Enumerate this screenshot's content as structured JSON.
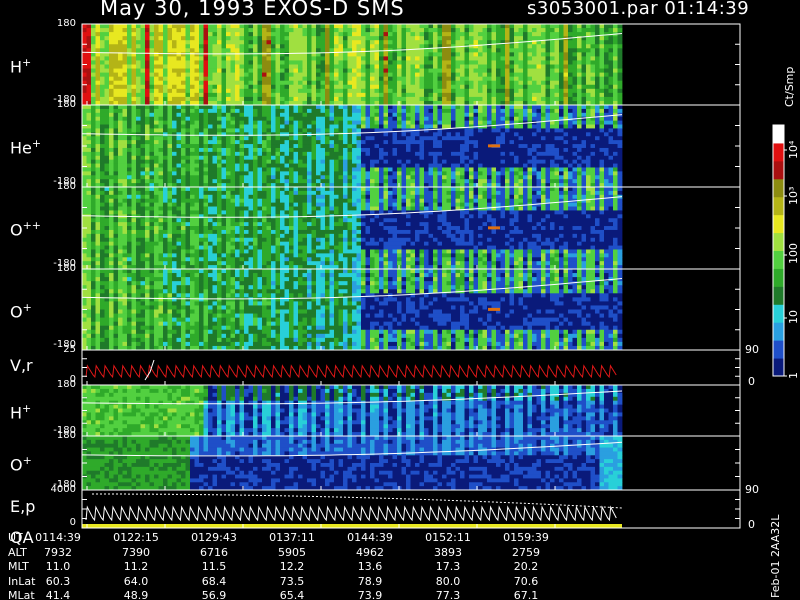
{
  "header": {
    "title": "May 30, 1993   EXOS-D SMS",
    "file_time": "s3053001.par  01:14:39"
  },
  "panels": [
    {
      "name_main": "H",
      "name_sup": "+",
      "y_top": "180",
      "y_bot": "-180",
      "kind": "hplus"
    },
    {
      "name_main": "He",
      "name_sup": "+",
      "y_top": "180",
      "y_bot": "-180",
      "kind": "heplus"
    },
    {
      "name_main": "O",
      "name_sup": "++",
      "y_top": "180",
      "y_bot": "-180",
      "kind": "opp"
    },
    {
      "name_main": "O",
      "name_sup": "+",
      "y_top": "180",
      "y_bot": "-180",
      "kind": "oplus"
    },
    {
      "name_main": "V,r",
      "name_sup": "",
      "y_top": "25",
      "y_bot": "0",
      "r_top": "90",
      "r_bot": "0",
      "kind": "vr"
    },
    {
      "name_main": "H",
      "name_sup": "+",
      "y_top": "180",
      "y_bot": "-180",
      "kind": "hplus2"
    },
    {
      "name_main": "O",
      "name_sup": "+",
      "y_top": "180",
      "y_bot": "-180",
      "kind": "oplus2"
    },
    {
      "name_main": "E,p",
      "name_sup": "",
      "name2": "QA",
      "y_top": "4000",
      "y_bot": "0",
      "r_top": "90",
      "r_bot": "0",
      "kind": "ep"
    }
  ],
  "colorbar": {
    "label": "Ct/Smp",
    "ticks": [
      "1",
      "10",
      "100",
      "10³",
      "10⁴"
    ],
    "colors": [
      "#0a1a7a",
      "#1f4fc8",
      "#2a9fe0",
      "#28d0d8",
      "#1f7a2a",
      "#2faa2a",
      "#52d040",
      "#a0e040",
      "#e8e820",
      "#b4b416",
      "#8c8c10",
      "#aa1010",
      "#e01010",
      "#ffffff"
    ]
  },
  "footer": {
    "rows": [
      {
        "label": "UT",
        "values": [
          "0114:39",
          "0122:15",
          "0129:43",
          "0137:11",
          "0144:39",
          "0152:11",
          "0159:39"
        ]
      },
      {
        "label": "ALT",
        "values": [
          "7932",
          "7390",
          "6716",
          "5905",
          "4962",
          "3893",
          "2759"
        ]
      },
      {
        "label": "MLT",
        "values": [
          "11.0",
          "11.2",
          "11.5",
          "12.2",
          "13.6",
          "17.3",
          "20.2"
        ]
      },
      {
        "label": "InLat",
        "values": [
          "60.3",
          "64.0",
          "68.4",
          "73.5",
          "78.9",
          "80.0",
          "70.6"
        ]
      },
      {
        "label": "MLat",
        "values": [
          "41.4",
          "48.9",
          "56.9",
          "65.4",
          "73.9",
          "77.3",
          "67.1"
        ]
      }
    ],
    "side_code": "Feb-01 2AA32L"
  },
  "chart_data": {
    "type": "heatmap",
    "title": "May 30, 1993   EXOS-D SMS",
    "x_ticks": [
      "0114:39",
      "0122:15",
      "0129:43",
      "0137:11",
      "0144:39",
      "0152:11",
      "0159:39"
    ],
    "color_scale": "log",
    "color_label": "Ct/Smp",
    "color_range": [
      1,
      10000
    ],
    "panels": [
      {
        "label": "H+",
        "ylim": [
          -180,
          180
        ]
      },
      {
        "label": "He+",
        "ylim": [
          -180,
          180
        ]
      },
      {
        "label": "O++",
        "ylim": [
          -180,
          180
        ]
      },
      {
        "label": "O+",
        "ylim": [
          -180,
          180
        ]
      },
      {
        "label": "V,r",
        "ylim": [
          0,
          25
        ],
        "ylim_right": [
          0,
          90
        ]
      },
      {
        "label": "H+",
        "ylim": [
          -180,
          180
        ]
      },
      {
        "label": "O+",
        "ylim": [
          -180,
          180
        ]
      },
      {
        "label": "E,p",
        "ylim": [
          0,
          4000
        ],
        "ylim_right": [
          0,
          90
        ]
      }
    ]
  }
}
